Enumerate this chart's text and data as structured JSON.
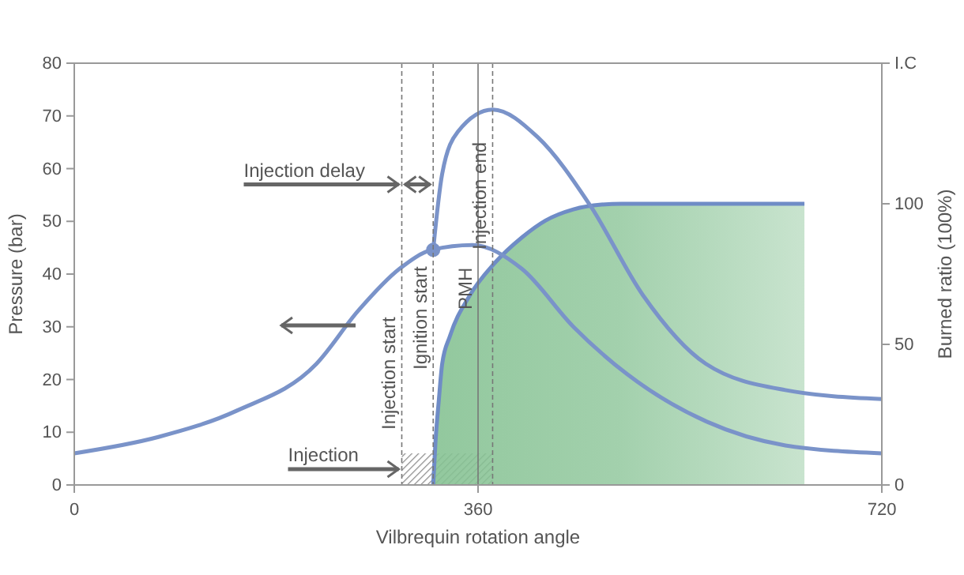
{
  "chart_data": {
    "type": "line",
    "xlabel": "Vilbrequin rotation angle",
    "ylabel": "Pressure (bar)",
    "y2label": "Burned ratio (100%)",
    "xlim": [
      0,
      720
    ],
    "xticks": [
      0,
      360,
      720
    ],
    "ylim": [
      0,
      80
    ],
    "yticks": [
      0,
      10,
      20,
      30,
      40,
      50,
      60,
      70,
      80
    ],
    "y2lim": [
      0,
      150
    ],
    "y2ticks": [
      0,
      50,
      100,
      {
        "value": 150,
        "label": "I.C"
      }
    ],
    "grid": false,
    "series": [
      {
        "type": "area",
        "axis": "y2",
        "color": "#86c293",
        "x": [
          320,
          322,
          325,
          328,
          335,
          352,
          375,
          399,
          420,
          445,
          470,
          488,
          651
        ],
        "values": [
          0,
          15,
          30,
          43,
          53,
          67,
          79,
          88,
          94,
          98,
          99.7,
          100,
          100
        ]
      },
      {
        "color": "#7a93c9",
        "x": [
          0,
          75,
          145,
          216,
          253,
          290,
          319,
          355,
          399,
          445,
          493,
          564,
          634,
          720
        ],
        "values": [
          6,
          9.1,
          14.1,
          23,
          33,
          41,
          44.6,
          45.5,
          41,
          30,
          21,
          12,
          7.5,
          6
        ]
      },
      {
        "color": "#7a93c9",
        "x": [
          320,
          328,
          342,
          373,
          413,
          460,
          507,
          563,
          634,
          720
        ],
        "values": [
          44.6,
          59,
          67,
          71.2,
          66,
          53,
          36,
          23,
          18,
          16.3
        ]
      },
      {
        "type": "scatter",
        "color": "#7a93c9",
        "x": [
          320
        ],
        "values": [
          44.6
        ]
      }
    ],
    "ref_lines": [
      {
        "axis": "x",
        "value": 292,
        "label": "Injection start",
        "line_style": "dashed"
      },
      {
        "axis": "x",
        "value": 320,
        "label": "Ignition start",
        "line_style": "dashed"
      },
      {
        "axis": "x",
        "value": 360,
        "label": "PMH",
        "line_style": "solid"
      },
      {
        "axis": "x",
        "value": 373,
        "label": "Injection end",
        "line_style": "dashed"
      }
    ],
    "bands": [
      {
        "axis": "x",
        "from": 292,
        "to": 373,
        "label": "Injection",
        "color": "#888888"
      }
    ],
    "annotations": [
      {
        "text": "Injection delay",
        "x": 292,
        "y": 57
      }
    ]
  }
}
